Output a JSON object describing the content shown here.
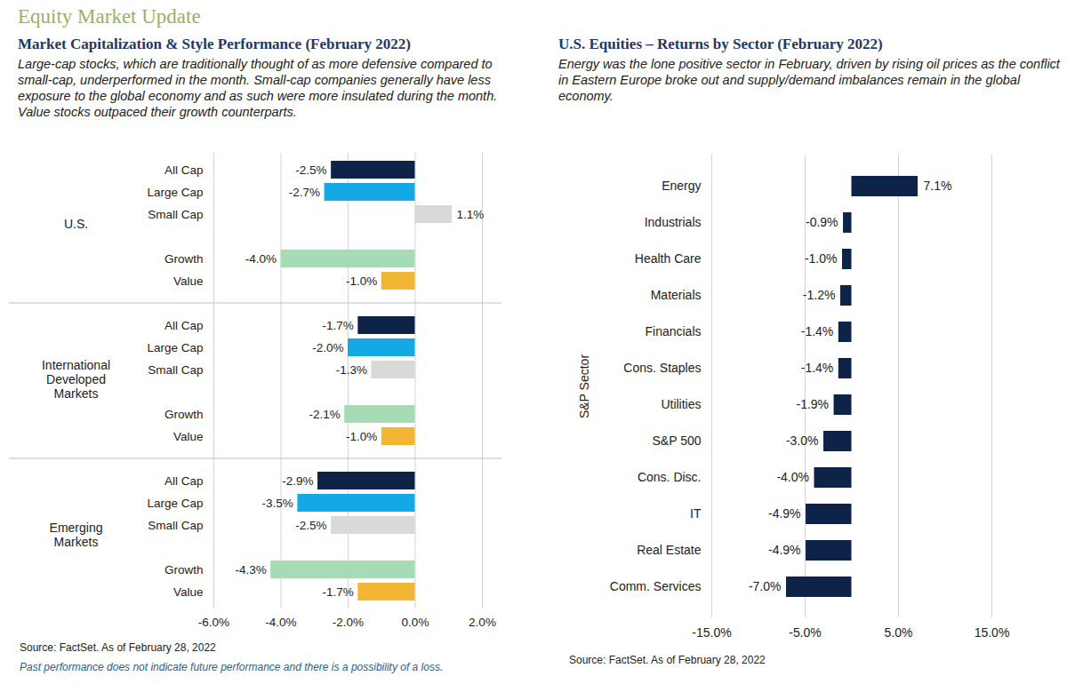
{
  "title": "Equity Market Update",
  "chart_data": [
    {
      "type": "bar",
      "orientation": "horizontal",
      "title": "Market Capitalization & Style Performance (February 2022)",
      "subtitle": "Large-cap stocks, which are traditionally thought of as more defensive compared to small-cap, underperformed in the month. Small-cap companies generally have less exposure to the global economy and as such were more insulated during the month. Value stocks outpaced their growth counterparts.",
      "categories": [
        "U.S.",
        "International Developed Markets",
        "Emerging Markets"
      ],
      "series": [
        {
          "name": "All Cap",
          "color": "#0d2347",
          "values": [
            -2.5,
            -1.7,
            -2.9
          ],
          "value_labels": [
            "-2.5%",
            "-1.7%",
            "-2.9%"
          ]
        },
        {
          "name": "Large Cap",
          "color": "#14a9e6",
          "values": [
            -2.7,
            -2.0,
            -3.5
          ],
          "value_labels": [
            "-2.7%",
            "-2.0%",
            "-3.5%"
          ]
        },
        {
          "name": "Small Cap",
          "color": "#d9d9d9",
          "values": [
            1.1,
            -1.3,
            -2.5
          ],
          "value_labels": [
            "1.1%",
            "-1.3%",
            "-2.5%"
          ]
        },
        {
          "name": "Growth",
          "color": "#a6dbb5",
          "values": [
            -4.0,
            -2.1,
            -4.3
          ],
          "value_labels": [
            "-4.0%",
            "-2.1%",
            "-4.3%"
          ]
        },
        {
          "name": "Value",
          "color": "#f2b632",
          "values": [
            -1.0,
            -1.0,
            -1.7
          ],
          "value_labels": [
            "-1.0%",
            "-1.0%",
            "-1.7%"
          ]
        }
      ],
      "xlim": [
        -6,
        2
      ],
      "xticks": [
        {
          "value": -6,
          "label": "-6.0%"
        },
        {
          "value": -4,
          "label": "-4.0%"
        },
        {
          "value": -2,
          "label": "-2.0%"
        },
        {
          "value": 0,
          "label": "0.0%"
        },
        {
          "value": 2,
          "label": "2.0%"
        }
      ],
      "grid": true,
      "data_labels": true,
      "source": "Source: FactSet. As of February 28, 2022",
      "note": "Past performance does not indicate future performance and there is a possibility of a loss."
    },
    {
      "type": "bar",
      "orientation": "horizontal",
      "title": "U.S. Equities – Returns by Sector (February 2022)",
      "subtitle": "Energy was the lone positive sector in February, driven by rising oil prices as the conflict in Eastern Europe broke out and supply/demand imbalances remain in the global economy.",
      "ylabel": "S&P Sector",
      "categories": [
        "Energy",
        "Industrials",
        "Health Care",
        "Materials",
        "Financials",
        "Cons. Staples",
        "Utilities",
        "S&P 500",
        "Cons. Disc.",
        "IT",
        "Real Estate",
        "Comm. Services"
      ],
      "values": [
        7.1,
        -0.9,
        -1.0,
        -1.2,
        -1.4,
        -1.4,
        -1.9,
        -3.0,
        -4.0,
        -4.9,
        -4.9,
        -7.0
      ],
      "value_labels": [
        "7.1%",
        "-0.9%",
        "-1.0%",
        "-1.2%",
        "-1.4%",
        "-1.4%",
        "-1.9%",
        "-3.0%",
        "-4.0%",
        "-4.9%",
        "-4.9%",
        "-7.0%"
      ],
      "color": "#0d2347",
      "xlim": [
        -15,
        15
      ],
      "xticks": [
        {
          "value": -15,
          "label": "-15.0%"
        },
        {
          "value": -5,
          "label": "-5.0%"
        },
        {
          "value": 5,
          "label": "5.0%"
        },
        {
          "value": 15,
          "label": "15.0%"
        }
      ],
      "grid": true,
      "data_labels": true,
      "source": "Source: FactSet. As of February 28, 2022"
    }
  ]
}
